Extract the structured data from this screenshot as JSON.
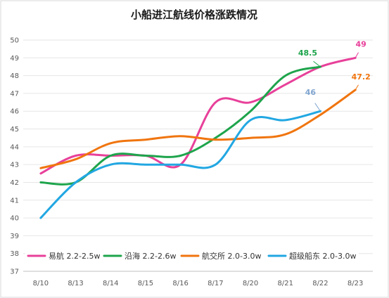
{
  "chart_data": {
    "type": "line",
    "title": "小船进江航线价格涨跌情况",
    "xlabel": "",
    "ylabel": "",
    "categories": [
      "8/10",
      "8/13",
      "8/14",
      "8/15",
      "8/16",
      "8/17",
      "8/20",
      "8/21",
      "8/22",
      "8/23"
    ],
    "ylim": [
      37,
      50
    ],
    "yticks": [
      "37",
      "38",
      "39",
      "40",
      "41",
      "42",
      "43",
      "44",
      "45",
      "46",
      "47",
      "48",
      "49",
      "50"
    ],
    "grid": true,
    "legend_position": "bottom-inside",
    "smooth": true,
    "series": [
      {
        "name": "易航 2.2-2.5w",
        "color": "#e8409a",
        "values": [
          42.5,
          43.5,
          43.5,
          43.5,
          43.0,
          46.5,
          46.5,
          47.5,
          48.5,
          49.0
        ],
        "end_label": "49"
      },
      {
        "name": "沿海 2.2-2.6w",
        "color": "#1ea44c",
        "values": [
          42.0,
          42.0,
          43.5,
          43.5,
          43.5,
          44.5,
          46.0,
          48.0,
          48.5,
          null
        ],
        "end_label": "48.5"
      },
      {
        "name": "航交所 2.0-3.0w",
        "color": "#f0750f",
        "values": [
          42.8,
          43.3,
          44.2,
          44.4,
          44.6,
          44.4,
          44.5,
          44.7,
          45.8,
          47.2
        ],
        "end_label": "47.2"
      },
      {
        "name": "超级船东 2.0-3.0w",
        "color": "#22a7e2",
        "values": [
          40.0,
          42.0,
          43.0,
          43.0,
          43.0,
          43.0,
          45.5,
          45.5,
          46.0,
          null
        ],
        "end_label": "46"
      }
    ],
    "end_label_colors": [
      "#e8409a",
      "#1ea44c",
      "#f0750f",
      "#7fa4cf"
    ]
  }
}
